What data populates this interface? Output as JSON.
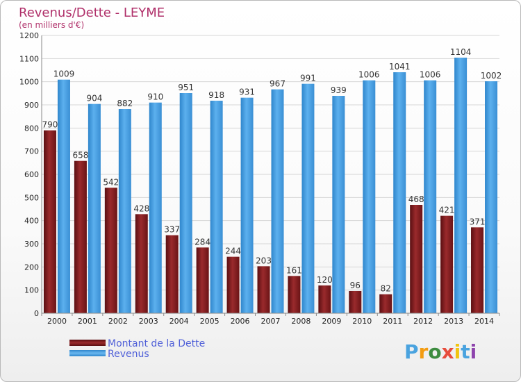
{
  "chart_data": {
    "type": "bar",
    "title": "Revenus/Dette - LEYME",
    "subtitle": "(en milliers d'€)",
    "categories": [
      "2000",
      "2001",
      "2002",
      "2003",
      "2004",
      "2005",
      "2006",
      "2007",
      "2008",
      "2009",
      "2010",
      "2011",
      "2012",
      "2013",
      "2014"
    ],
    "series": [
      {
        "name": "Montant de la Dette",
        "color": "#7a1a1c",
        "values": [
          790,
          658,
          542,
          428,
          337,
          284,
          244,
          203,
          161,
          120,
          96,
          82,
          468,
          421,
          371
        ]
      },
      {
        "name": "Revenus",
        "color": "#4ea4e6",
        "values": [
          1009,
          904,
          882,
          910,
          951,
          918,
          931,
          967,
          991,
          939,
          1006,
          1041,
          1006,
          1104,
          1002
        ]
      }
    ],
    "ylim": [
      0,
      1200
    ],
    "yticks": [
      0,
      100,
      200,
      300,
      400,
      500,
      600,
      700,
      800,
      900,
      1000,
      1100,
      1200
    ],
    "grid": true,
    "legend_position": "bottom-left"
  },
  "logo": {
    "letters": [
      "P",
      "r",
      "o",
      "x",
      "i",
      "t",
      "i"
    ],
    "colors": [
      "#4aa3df",
      "#f39c12",
      "#3d8c40",
      "#e74c3c",
      "#f1c40f",
      "#4aa3df",
      "#8e44ad"
    ]
  }
}
